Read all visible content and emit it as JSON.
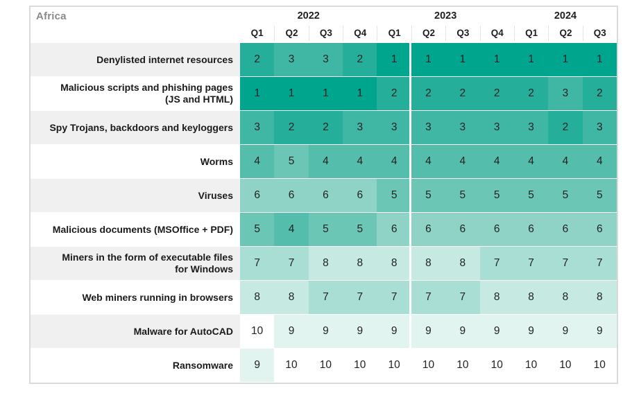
{
  "title": "Africa",
  "years": [
    {
      "label": "2022",
      "quarters": [
        "Q1",
        "Q2",
        "Q3",
        "Q4"
      ]
    },
    {
      "label": "2023",
      "quarters": [
        "Q1",
        "Q2",
        "Q3",
        "Q4"
      ]
    },
    {
      "label": "2024",
      "quarters": [
        "Q1",
        "Q2",
        "Q3"
      ]
    }
  ],
  "rows": [
    {
      "label": "Denylisted internet resources",
      "values": [
        2,
        3,
        3,
        2,
        1,
        1,
        1,
        1,
        1,
        1,
        1
      ]
    },
    {
      "label": "Malicious scripts and phishing pages (JS and HTML)",
      "values": [
        1,
        1,
        1,
        1,
        2,
        2,
        2,
        2,
        2,
        3,
        2
      ]
    },
    {
      "label": "Spy Trojans, backdoors and keyloggers",
      "values": [
        3,
        2,
        2,
        3,
        3,
        3,
        3,
        3,
        3,
        2,
        3
      ]
    },
    {
      "label": "Worms",
      "values": [
        4,
        5,
        4,
        4,
        4,
        4,
        4,
        4,
        4,
        4,
        4
      ]
    },
    {
      "label": "Viruses",
      "values": [
        6,
        6,
        6,
        6,
        5,
        5,
        5,
        5,
        5,
        5,
        5
      ]
    },
    {
      "label": "Malicious documents (MSOffice + PDF)",
      "values": [
        5,
        4,
        5,
        5,
        6,
        6,
        6,
        6,
        6,
        6,
        6
      ]
    },
    {
      "label": "Miners in the form of executable files for Windows",
      "values": [
        7,
        7,
        8,
        8,
        8,
        8,
        8,
        7,
        7,
        7,
        7
      ]
    },
    {
      "label": "Web miners running in browsers",
      "values": [
        8,
        8,
        7,
        7,
        7,
        7,
        7,
        8,
        8,
        8,
        8
      ]
    },
    {
      "label": "Malware for AutoCAD",
      "values": [
        10,
        9,
        9,
        9,
        9,
        9,
        9,
        9,
        9,
        9,
        9
      ]
    },
    {
      "label": "Ransomware",
      "values": [
        9,
        10,
        10,
        10,
        10,
        10,
        10,
        10,
        10,
        10,
        10
      ]
    }
  ],
  "colors": {
    "rank_scale": {
      "1": "#00a58e",
      "2": "#25ae99",
      "3": "#40b7a4",
      "4": "#54bdab",
      "5": "#6cc6b6",
      "6": "#8fd3c7",
      "7": "#a9ded4",
      "8": "#c6e9e1",
      "9": "#e2f4f0",
      "10": "#ffffff"
    },
    "label_band_bg": "#f0f0f0",
    "frame_border": "#dadada",
    "title_text": "#8a8a8a"
  },
  "chart_data": {
    "type": "heatmap",
    "title": "Africa",
    "x": [
      "2022 Q1",
      "2022 Q2",
      "2022 Q3",
      "2022 Q4",
      "2023 Q1",
      "2023 Q2",
      "2023 Q3",
      "2023 Q4",
      "2024 Q1",
      "2024 Q2",
      "2024 Q3"
    ],
    "rows": [
      {
        "name": "Denylisted internet resources",
        "values": [
          2,
          3,
          3,
          2,
          1,
          1,
          1,
          1,
          1,
          1,
          1
        ]
      },
      {
        "name": "Malicious scripts and phishing pages (JS and HTML)",
        "values": [
          1,
          1,
          1,
          1,
          2,
          2,
          2,
          2,
          2,
          3,
          2
        ]
      },
      {
        "name": "Spy Trojans, backdoors and keyloggers",
        "values": [
          3,
          2,
          2,
          3,
          3,
          3,
          3,
          3,
          3,
          2,
          3
        ]
      },
      {
        "name": "Worms",
        "values": [
          4,
          5,
          4,
          4,
          4,
          4,
          4,
          4,
          4,
          4,
          4
        ]
      },
      {
        "name": "Viruses",
        "values": [
          6,
          6,
          6,
          6,
          5,
          5,
          5,
          5,
          5,
          5,
          5
        ]
      },
      {
        "name": "Malicious documents (MSOffice + PDF)",
        "values": [
          5,
          4,
          5,
          5,
          6,
          6,
          6,
          6,
          6,
          6,
          6
        ]
      },
      {
        "name": "Miners in the form of executable files for Windows",
        "values": [
          7,
          7,
          8,
          8,
          8,
          8,
          8,
          7,
          7,
          7,
          7
        ]
      },
      {
        "name": "Web miners running in browsers",
        "values": [
          8,
          8,
          7,
          7,
          7,
          7,
          7,
          8,
          8,
          8,
          8
        ]
      },
      {
        "name": "Malware for AutoCAD",
        "values": [
          10,
          9,
          9,
          9,
          9,
          9,
          9,
          9,
          9,
          9,
          9
        ]
      },
      {
        "name": "Ransomware",
        "values": [
          9,
          10,
          10,
          10,
          10,
          10,
          10,
          10,
          10,
          10,
          10
        ]
      }
    ],
    "value_meaning": "rank position 1 (top, darkest) to 10 (bottom, white)",
    "scale": {
      "min": 1,
      "max": 10,
      "dark_color": "#00a58e",
      "light_color": "#ffffff"
    },
    "legend": "none"
  }
}
